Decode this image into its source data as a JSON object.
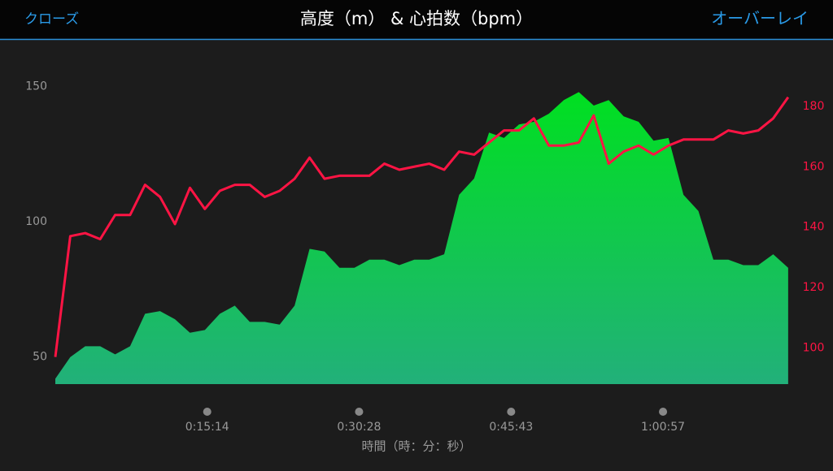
{
  "header": {
    "close": "クローズ",
    "overlay": "オーバーレイ"
  },
  "chart_data": {
    "type": "area-line",
    "title": "高度（m） & 心拍数（bpm）",
    "x_label": "時間（時：分：秒）",
    "x": [
      0,
      90,
      180,
      270,
      360,
      450,
      540,
      630,
      720,
      810,
      900,
      990,
      1080,
      1170,
      1260,
      1350,
      1440,
      1530,
      1620,
      1710,
      1800,
      1890,
      1980,
      2070,
      2160,
      2250,
      2340,
      2430,
      2520,
      2610,
      2700,
      2790,
      2880,
      2970,
      3060,
      3150,
      3240,
      3330,
      3420,
      3510,
      3600,
      3690,
      3780,
      3870,
      3960,
      4050,
      4140,
      4230,
      4320,
      4410
    ],
    "xlim": [
      0,
      4440
    ],
    "xticks": [
      {
        "value": 914,
        "label": "0:15:14"
      },
      {
        "value": 1828,
        "label": "0:30:28"
      },
      {
        "value": 2743,
        "label": "0:45:43"
      },
      {
        "value": 3657,
        "label": "1:00:57"
      }
    ],
    "ylim": [
      40,
      155
    ],
    "yticks": [
      50,
      100,
      150
    ],
    "y2lim": [
      88,
      191
    ],
    "y2ticks": [
      100,
      120,
      140,
      160,
      180
    ],
    "series": [
      {
        "type": "area",
        "color": "#00e020",
        "color_bottom": "#22b07a",
        "values": [
          42,
          50,
          54,
          54,
          51,
          54,
          66,
          67,
          64,
          59,
          60,
          66,
          69,
          63,
          63,
          62,
          69,
          90,
          89,
          83,
          83,
          86,
          86,
          84,
          86,
          86,
          88,
          110,
          116,
          133,
          131,
          136,
          137,
          140,
          145,
          148,
          143,
          145,
          139,
          137,
          130,
          131,
          110,
          104,
          86,
          86,
          84,
          84,
          88,
          83
        ]
      },
      {
        "type": "line",
        "axis": "y2",
        "color": "#ff1444",
        "values": [
          97,
          137,
          138,
          136,
          144,
          144,
          154,
          150,
          141,
          153,
          146,
          152,
          154,
          154,
          150,
          152,
          156,
          163,
          156,
          157,
          157,
          157,
          161,
          159,
          160,
          161,
          159,
          165,
          164,
          168,
          172,
          172,
          176,
          167,
          167,
          168,
          177,
          161,
          165,
          167,
          164,
          167,
          169,
          169,
          169,
          172,
          171,
          172,
          176,
          183
        ]
      }
    ]
  }
}
